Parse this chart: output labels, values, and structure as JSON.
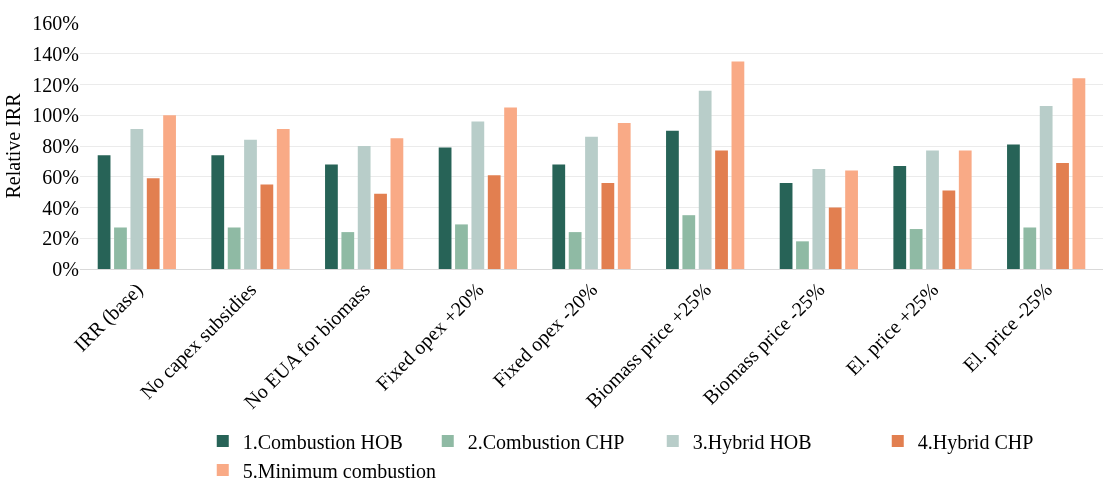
{
  "chart_data": {
    "type": "bar",
    "ylabel": "Relative IRR",
    "categories": [
      "IRR (base)",
      "No capex subsidies",
      "No EUA for biomass",
      "Fixed opex +20%",
      "Fixed opex -20%",
      "Biomass price +25%",
      "Biomass price -25%",
      "El. price +25%",
      "El. price -25%"
    ],
    "series": [
      {
        "name": "1.Combustion HOB",
        "color": "#276357",
        "values": [
          74,
          74,
          68,
          79,
          68,
          90,
          56,
          67,
          81
        ]
      },
      {
        "name": "2.Combustion CHP",
        "color": "#8fbaa4",
        "values": [
          27,
          27,
          24,
          29,
          24,
          35,
          18,
          26,
          27
        ]
      },
      {
        "name": "3.Hybrid HOB",
        "color": "#b8cdc9",
        "values": [
          91,
          84,
          80,
          96,
          86,
          116,
          65,
          77,
          106
        ]
      },
      {
        "name": "4.Hybrid CHP",
        "color": "#e27f50",
        "values": [
          59,
          55,
          49,
          61,
          56,
          77,
          40,
          51,
          69
        ]
      },
      {
        "name": "5.Minimum combustion",
        "color": "#f9aa86",
        "values": [
          100,
          91,
          85,
          105,
          95,
          135,
          64,
          77,
          124
        ]
      }
    ],
    "ylim": [
      0,
      160
    ],
    "yticks": [
      {
        "value": 0,
        "label": "0%"
      },
      {
        "value": 20,
        "label": "20%"
      },
      {
        "value": 40,
        "label": "40%"
      },
      {
        "value": 60,
        "label": "60%"
      },
      {
        "value": 80,
        "label": "80%"
      },
      {
        "value": 100,
        "label": "100%"
      },
      {
        "value": 120,
        "label": "120%"
      },
      {
        "value": 140,
        "label": "140%"
      },
      {
        "value": 160,
        "label": "160%"
      }
    ],
    "grid": "y",
    "legend": "bottom"
  }
}
